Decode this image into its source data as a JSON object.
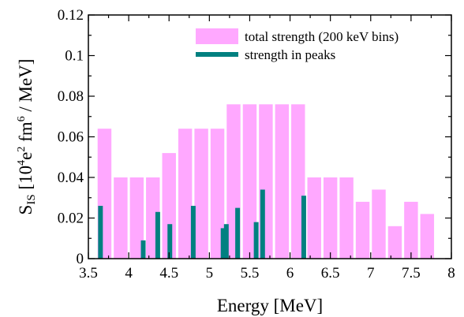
{
  "chart_data": {
    "type": "bar",
    "xlabel": "Energy [MeV]",
    "ylabel": {
      "main": "S",
      "sub": "IS",
      "pre": " [10",
      "sup1": "4",
      "mid": "e",
      "sup2": "2",
      "mid2": " fm",
      "sup3": "6",
      "post": " / MeV]"
    },
    "xlim": [
      3.5,
      8
    ],
    "ylim": [
      0,
      0.12
    ],
    "xticks": [
      3.5,
      4,
      4.5,
      5,
      5.5,
      6,
      6.5,
      7,
      7.5,
      8
    ],
    "xtick_labels": [
      "3.5",
      "4",
      "4.5",
      "5",
      "5.5",
      "6",
      "6.5",
      "7",
      "7.5",
      "8"
    ],
    "yticks": [
      0,
      0.02,
      0.04,
      0.06,
      0.08,
      0.1,
      0.12
    ],
    "ytick_labels": [
      "0",
      "0.02",
      "0.04",
      "0.06",
      "0.08",
      "0.1",
      "0.12"
    ],
    "legend_position": "top-right",
    "colors": {
      "total": "#ffa8ff",
      "peaks": "#008080"
    },
    "series": [
      {
        "name": "total strength (200 keV bins)",
        "bin_width": 0.2,
        "x": [
          3.7,
          3.9,
          4.1,
          4.3,
          4.5,
          4.7,
          4.9,
          5.1,
          5.3,
          5.5,
          5.7,
          5.9,
          6.1,
          6.3,
          6.5,
          6.7,
          6.9,
          7.1,
          7.3,
          7.5,
          7.7
        ],
        "values": [
          0.064,
          0.04,
          0.04,
          0.04,
          0.052,
          0.064,
          0.064,
          0.064,
          0.076,
          0.076,
          0.076,
          0.076,
          0.076,
          0.04,
          0.04,
          0.04,
          0.028,
          0.034,
          0.016,
          0.028,
          0.022
        ]
      },
      {
        "name": "strength in peaks",
        "x": [
          3.65,
          4.18,
          4.36,
          4.51,
          4.8,
          5.17,
          5.21,
          5.35,
          5.58,
          5.66,
          6.17
        ],
        "values": [
          0.026,
          0.009,
          0.023,
          0.017,
          0.026,
          0.015,
          0.017,
          0.025,
          0.018,
          0.034,
          0.031
        ]
      }
    ]
  }
}
